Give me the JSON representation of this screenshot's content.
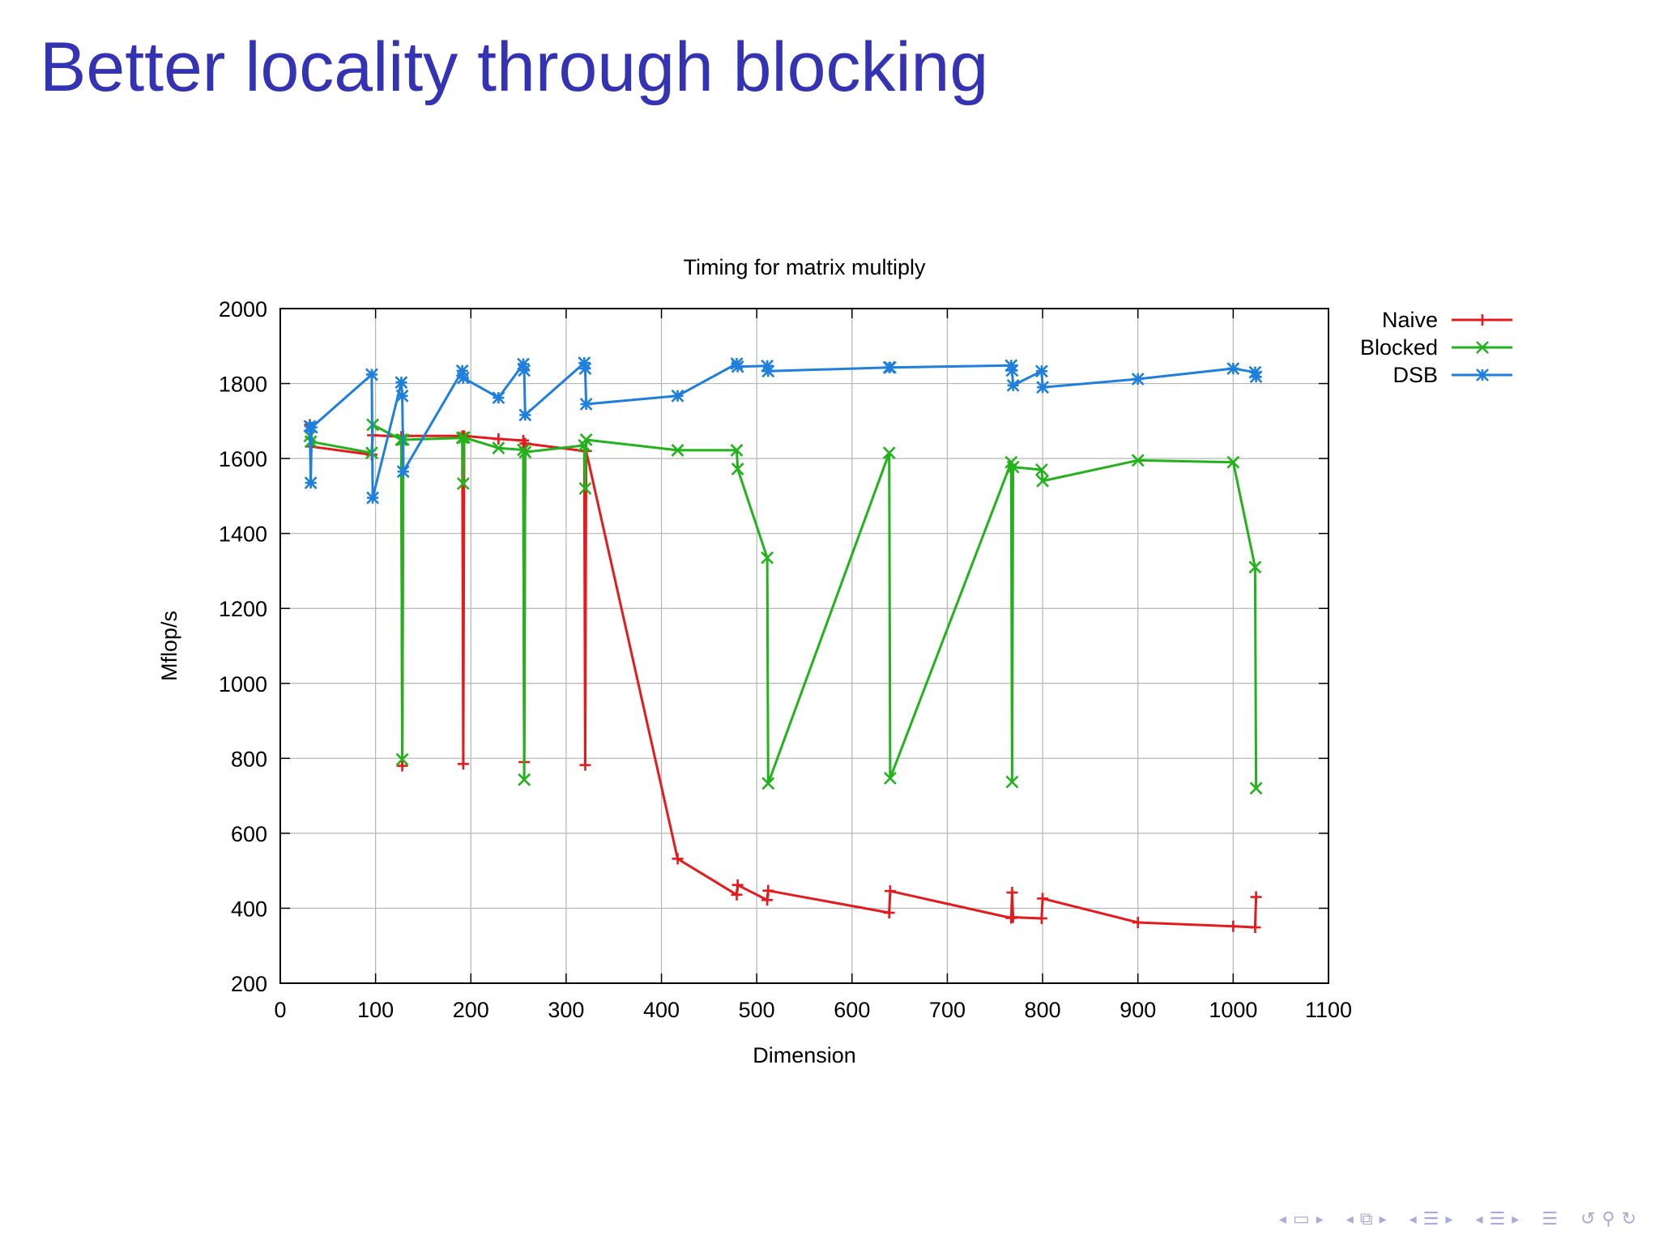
{
  "slide": {
    "title": "Better locality through blocking"
  },
  "chart_data": {
    "type": "line",
    "title": "Timing for matrix multiply",
    "xlabel": "Dimension",
    "ylabel": "Mflop/s",
    "xlim": [
      0,
      1100
    ],
    "ylim": [
      200,
      2000
    ],
    "xticks": [
      0,
      100,
      200,
      300,
      400,
      500,
      600,
      700,
      800,
      900,
      1000,
      1100
    ],
    "yticks": [
      200,
      400,
      600,
      800,
      1000,
      1200,
      1400,
      1600,
      1800,
      2000
    ],
    "grid": true,
    "legend_position": "outside-top-right",
    "series": [
      {
        "name": "Naive",
        "color": "#e41a1c",
        "marker": "plus",
        "points": [
          [
            31,
            1690
          ],
          [
            32,
            1632
          ],
          [
            96,
            1610
          ],
          [
            97,
            1662
          ],
          [
            127,
            1658
          ],
          [
            128,
            780
          ],
          [
            129,
            1660
          ],
          [
            191,
            1660
          ],
          [
            192,
            785
          ],
          [
            193,
            1660
          ],
          [
            229,
            1652
          ],
          [
            255,
            1648
          ],
          [
            256,
            790
          ],
          [
            257,
            1640
          ],
          [
            319,
            1620
          ],
          [
            320,
            782
          ],
          [
            321,
            1620
          ],
          [
            417,
            532
          ],
          [
            479,
            436
          ],
          [
            480,
            462
          ],
          [
            511,
            422
          ],
          [
            512,
            447
          ],
          [
            639,
            388
          ],
          [
            640,
            446
          ],
          [
            767,
            374
          ],
          [
            768,
            442
          ],
          [
            769,
            376
          ],
          [
            799,
            373
          ],
          [
            800,
            426
          ],
          [
            900,
            362
          ],
          [
            1000,
            352
          ],
          [
            1023,
            349
          ],
          [
            1024,
            430
          ]
        ]
      },
      {
        "name": "Blocked",
        "color": "#22b21c",
        "marker": "x",
        "points": [
          [
            31,
            1660
          ],
          [
            32,
            1645
          ],
          [
            96,
            1615
          ],
          [
            97,
            1690
          ],
          [
            127,
            1650
          ],
          [
            128,
            797
          ],
          [
            129,
            1650
          ],
          [
            191,
            1655
          ],
          [
            192,
            1533
          ],
          [
            193,
            1656
          ],
          [
            229,
            1628
          ],
          [
            255,
            1623
          ],
          [
            256,
            743
          ],
          [
            257,
            1617
          ],
          [
            319,
            1635
          ],
          [
            320,
            1520
          ],
          [
            321,
            1650
          ],
          [
            417,
            1622
          ],
          [
            479,
            1622
          ],
          [
            480,
            1572
          ],
          [
            511,
            1335
          ],
          [
            512,
            733
          ],
          [
            639,
            1615
          ],
          [
            640,
            747
          ],
          [
            767,
            1590
          ],
          [
            768,
            737
          ],
          [
            769,
            1577
          ],
          [
            799,
            1570
          ],
          [
            800,
            1540
          ],
          [
            900,
            1595
          ],
          [
            1000,
            1590
          ],
          [
            1023,
            1310
          ],
          [
            1024,
            720
          ]
        ]
      },
      {
        "name": "DSB",
        "color": "#1e7fdc",
        "marker": "star",
        "points": [
          [
            31,
            1686
          ],
          [
            32,
            1535
          ],
          [
            33,
            1683
          ],
          [
            96,
            1824
          ],
          [
            97,
            1495
          ],
          [
            127,
            1803
          ],
          [
            128,
            1767
          ],
          [
            129,
            1565
          ],
          [
            191,
            1834
          ],
          [
            192,
            1815
          ],
          [
            229,
            1762
          ],
          [
            255,
            1852
          ],
          [
            256,
            1835
          ],
          [
            257,
            1716
          ],
          [
            319,
            1855
          ],
          [
            320,
            1840
          ],
          [
            321,
            1745
          ],
          [
            417,
            1767
          ],
          [
            479,
            1853
          ],
          [
            480,
            1845
          ],
          [
            511,
            1847
          ],
          [
            512,
            1833
          ],
          [
            639,
            1843
          ],
          [
            640,
            1843
          ],
          [
            767,
            1848
          ],
          [
            768,
            1835
          ],
          [
            769,
            1795
          ],
          [
            799,
            1833
          ],
          [
            800,
            1790
          ],
          [
            900,
            1812
          ],
          [
            1000,
            1840
          ],
          [
            1023,
            1830
          ],
          [
            1024,
            1818
          ]
        ]
      }
    ]
  },
  "navigation": {
    "icons": [
      "prev-frame-icon",
      "frame-icon",
      "next-frame-icon",
      "prev-subsection-icon",
      "subsection-icon",
      "next-subsection-icon",
      "prev-section-icon",
      "section-icon",
      "next-section-icon",
      "prev-slide-icon",
      "slide-icon",
      "next-slide-icon",
      "toc-icon",
      "undo-icon",
      "search-icon",
      "redo-icon"
    ]
  }
}
